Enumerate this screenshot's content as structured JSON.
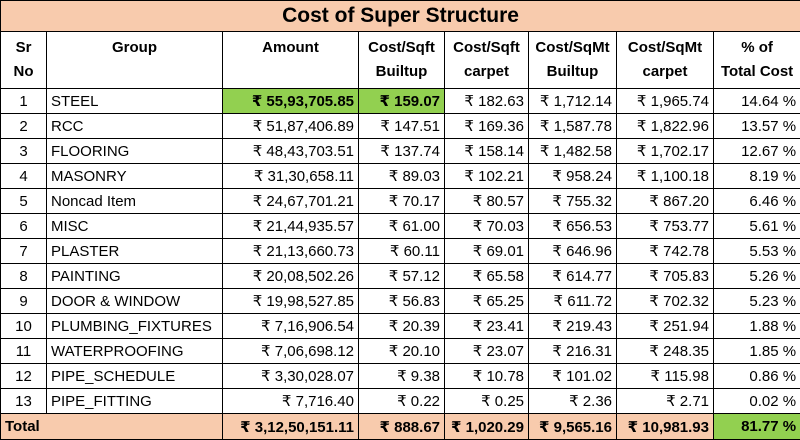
{
  "title": "Cost of Super Structure",
  "headers": {
    "sr": [
      "Sr",
      "No"
    ],
    "group": [
      "Group"
    ],
    "amount": [
      "Amount"
    ],
    "csb": [
      "Cost/Sqft",
      "Builtup"
    ],
    "csc": [
      "Cost/Sqft",
      "carpet"
    ],
    "cmb": [
      "Cost/SqMt",
      "Builtup"
    ],
    "cmc": [
      "Cost/SqMt",
      "carpet"
    ],
    "pct": [
      "% of",
      "Total Cost"
    ]
  },
  "rows": [
    {
      "sr": "1",
      "group": "STEEL",
      "amount": "₹ 55,93,705.85",
      "csb": "₹ 159.07",
      "csc": "₹ 182.63",
      "cmb": "₹ 1,712.14",
      "cmc": "₹ 1,965.74",
      "pct": "14.64 %"
    },
    {
      "sr": "2",
      "group": "RCC",
      "amount": "₹ 51,87,406.89",
      "csb": "₹ 147.51",
      "csc": "₹ 169.36",
      "cmb": "₹ 1,587.78",
      "cmc": "₹ 1,822.96",
      "pct": "13.57 %"
    },
    {
      "sr": "3",
      "group": "FLOORING",
      "amount": "₹ 48,43,703.51",
      "csb": "₹ 137.74",
      "csc": "₹ 158.14",
      "cmb": "₹ 1,482.58",
      "cmc": "₹ 1,702.17",
      "pct": "12.67 %"
    },
    {
      "sr": "4",
      "group": "MASONRY",
      "amount": "₹ 31,30,658.11",
      "csb": "₹ 89.03",
      "csc": "₹ 102.21",
      "cmb": "₹ 958.24",
      "cmc": "₹ 1,100.18",
      "pct": "8.19 %"
    },
    {
      "sr": "5",
      "group": "Noncad Item",
      "amount": "₹ 24,67,701.21",
      "csb": "₹ 70.17",
      "csc": "₹ 80.57",
      "cmb": "₹ 755.32",
      "cmc": "₹ 867.20",
      "pct": "6.46 %"
    },
    {
      "sr": "6",
      "group": "MISC",
      "amount": "₹ 21,44,935.57",
      "csb": "₹ 61.00",
      "csc": "₹ 70.03",
      "cmb": "₹ 656.53",
      "cmc": "₹ 753.77",
      "pct": "5.61 %"
    },
    {
      "sr": "7",
      "group": "PLASTER",
      "amount": "₹ 21,13,660.73",
      "csb": "₹ 60.11",
      "csc": "₹ 69.01",
      "cmb": "₹ 646.96",
      "cmc": "₹ 742.78",
      "pct": "5.53 %"
    },
    {
      "sr": "8",
      "group": "PAINTING",
      "amount": "₹ 20,08,502.26",
      "csb": "₹ 57.12",
      "csc": "₹ 65.58",
      "cmb": "₹ 614.77",
      "cmc": "₹ 705.83",
      "pct": "5.26 %"
    },
    {
      "sr": "9",
      "group": "DOOR & WINDOW",
      "amount": "₹ 19,98,527.85",
      "csb": "₹ 56.83",
      "csc": "₹ 65.25",
      "cmb": "₹ 611.72",
      "cmc": "₹ 702.32",
      "pct": "5.23 %"
    },
    {
      "sr": "10",
      "group": "PLUMBING_FIXTURES",
      "amount": "₹ 7,16,906.54",
      "csb": "₹ 20.39",
      "csc": "₹ 23.41",
      "cmb": "₹ 219.43",
      "cmc": "₹ 251.94",
      "pct": "1.88 %"
    },
    {
      "sr": "11",
      "group": "WATERPROOFING",
      "amount": "₹ 7,06,698.12",
      "csb": "₹ 20.10",
      "csc": "₹ 23.07",
      "cmb": "₹ 216.31",
      "cmc": "₹ 248.35",
      "pct": "1.85 %"
    },
    {
      "sr": "12",
      "group": "PIPE_SCHEDULE",
      "amount": "₹ 3,30,028.07",
      "csb": "₹ 9.38",
      "csc": "₹ 10.78",
      "cmb": "₹ 101.02",
      "cmc": "₹ 115.98",
      "pct": "0.86 %"
    },
    {
      "sr": "13",
      "group": "PIPE_FITTING",
      "amount": "₹ 7,716.40",
      "csb": "₹ 0.22",
      "csc": "₹ 0.25",
      "cmb": "₹ 2.36",
      "cmc": "₹ 2.71",
      "pct": "0.02 %"
    }
  ],
  "total": {
    "label": "Total",
    "amount": "₹ 3,12,50,151.11",
    "csb": "₹ 888.67",
    "csc": "₹ 1,020.29",
    "cmb": "₹ 9,565.16",
    "cmc": "₹ 10,981.93",
    "pct": "81.77 %"
  },
  "colors": {
    "title_fill": "#f8cbad",
    "total_fill": "#f8cbad",
    "highlight_fill": "#92d050",
    "border": "#000000"
  }
}
